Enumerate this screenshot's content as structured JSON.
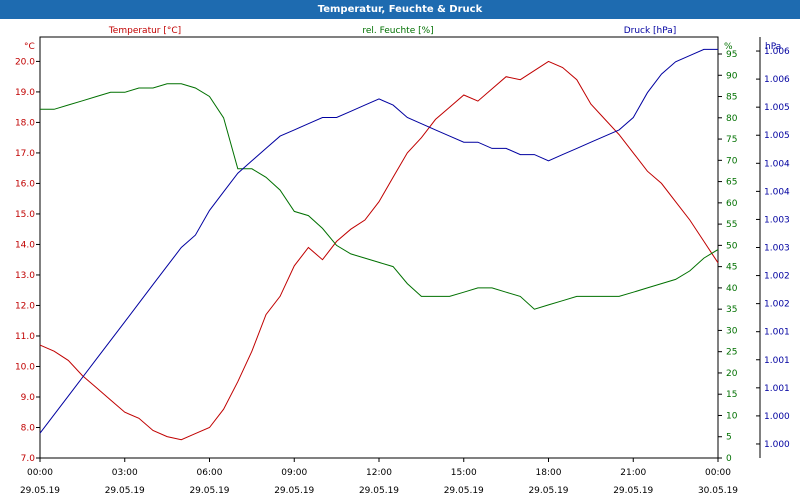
{
  "window": {
    "title": "Temperatur, Feuchte & Druck"
  },
  "colors": {
    "title_bar": "#1e6bb0",
    "temperature": "#c00000",
    "humidity": "#007000",
    "pressure": "#0000a0",
    "grid": "#000000",
    "axis": "#000000"
  },
  "chart_data": {
    "type": "line",
    "grid": true,
    "axes": {
      "left": {
        "label": "Temperatur [°C]",
        "unit": "°C",
        "range": [
          7.0,
          20.8
        ],
        "ticks": [
          "7.0",
          "8.0",
          "9.0",
          "10.0",
          "11.0",
          "12.0",
          "13.0",
          "14.0",
          "15.0",
          "16.0",
          "17.0",
          "18.0",
          "19.0",
          "20.0"
        ]
      },
      "right1": {
        "label": "rel. Feuchte [%]",
        "unit": "%",
        "range": [
          0,
          99
        ],
        "ticks": [
          "0",
          "5",
          "10",
          "15",
          "20",
          "25",
          "30",
          "35",
          "40",
          "45",
          "50",
          "55",
          "60",
          "65",
          "70",
          "75",
          "80",
          "85",
          "90",
          "95"
        ]
      },
      "right2": {
        "label": "Druck [hPa]",
        "unit": "hPa",
        "range": [
          1.0,
          1.0068
        ],
        "ticks": [
          "1.000",
          "1.000",
          "1.001",
          "1.001",
          "1.001",
          "1.002",
          "1.002",
          "1.003",
          "1.003",
          "1.004",
          "1.004",
          "1.005",
          "1.005",
          "1.006",
          "1.006"
        ]
      },
      "x": {
        "range": [
          0,
          24
        ],
        "ticks": [
          {
            "time": "00:00",
            "date": "29.05.19"
          },
          {
            "time": "03:00",
            "date": "29.05.19"
          },
          {
            "time": "06:00",
            "date": "29.05.19"
          },
          {
            "time": "09:00",
            "date": "29.05.19"
          },
          {
            "time": "12:00",
            "date": "29.05.19"
          },
          {
            "time": "15:00",
            "date": "29.05.19"
          },
          {
            "time": "18:00",
            "date": "29.05.19"
          },
          {
            "time": "21:00",
            "date": "29.05.19"
          },
          {
            "time": "00:00",
            "date": "30.05.19"
          }
        ]
      }
    },
    "series": [
      {
        "name": "Temperatur [°C]",
        "axis": "left",
        "x": [
          0,
          0.5,
          1,
          1.5,
          2,
          2.5,
          3,
          3.5,
          4,
          4.5,
          5,
          5.5,
          6,
          6.5,
          7,
          7.5,
          8,
          8.5,
          9,
          9.5,
          10,
          10.5,
          11,
          11.5,
          12,
          12.5,
          13,
          13.5,
          14,
          14.5,
          15,
          15.5,
          16,
          16.5,
          17,
          17.5,
          18,
          18.5,
          19,
          19.5,
          20,
          20.5,
          21,
          21.5,
          22,
          22.5,
          23,
          23.5,
          24
        ],
        "values": [
          10.7,
          10.5,
          10.2,
          9.7,
          9.3,
          8.9,
          8.5,
          8.3,
          7.9,
          7.7,
          7.6,
          7.8,
          8.0,
          8.6,
          9.5,
          10.5,
          11.7,
          12.3,
          13.3,
          13.9,
          13.5,
          14.1,
          14.5,
          14.8,
          15.4,
          16.2,
          17.0,
          17.5,
          18.1,
          18.5,
          18.9,
          18.7,
          19.1,
          19.5,
          19.4,
          19.7,
          20.0,
          19.8,
          19.4,
          18.6,
          18.1,
          17.6,
          17.0,
          16.4,
          16.0,
          15.4,
          14.8,
          14.1,
          13.4
        ]
      },
      {
        "name": "rel. Feuchte [%]",
        "axis": "right1",
        "x": [
          0,
          0.5,
          1,
          1.5,
          2,
          2.5,
          3,
          3.5,
          4,
          4.5,
          5,
          5.5,
          6,
          6.5,
          7,
          7.5,
          8,
          8.5,
          9,
          9.5,
          10,
          10.5,
          11,
          11.5,
          12,
          12.5,
          13,
          13.5,
          14,
          14.5,
          15,
          15.5,
          16,
          16.5,
          17,
          17.5,
          18,
          18.5,
          19,
          19.5,
          20,
          20.5,
          21,
          21.5,
          22,
          22.5,
          23,
          23.5,
          24
        ],
        "values": [
          82,
          82,
          83,
          84,
          85,
          86,
          86,
          87,
          87,
          88,
          88,
          87,
          85,
          80,
          68,
          68,
          66,
          63,
          58,
          57,
          54,
          50,
          48,
          47,
          46,
          45,
          41,
          38,
          38,
          38,
          39,
          40,
          40,
          39,
          38,
          35,
          36,
          37,
          38,
          38,
          38,
          38,
          39,
          40,
          41,
          42,
          44,
          47,
          49
        ]
      },
      {
        "name": "Druck [hPa]",
        "axis": "right2",
        "x": [
          0,
          0.5,
          1,
          1.5,
          2,
          2.5,
          3,
          3.5,
          4,
          4.5,
          5,
          5.5,
          6,
          6.5,
          7,
          7.5,
          8,
          8.5,
          9,
          9.5,
          10,
          10.5,
          11,
          11.5,
          12,
          12.5,
          13,
          13.5,
          14,
          14.5,
          15,
          15.5,
          16,
          16.5,
          17,
          17.5,
          18,
          18.5,
          19,
          19.5,
          20,
          20.5,
          21,
          21.5,
          22,
          22.5,
          23,
          23.5,
          24
        ],
        "values": [
          1.0004,
          1.0007,
          1.001,
          1.0013,
          1.0016,
          1.0019,
          1.0022,
          1.0025,
          1.0028,
          1.0031,
          1.0034,
          1.0036,
          1.004,
          1.0043,
          1.0046,
          1.0048,
          1.005,
          1.0052,
          1.0053,
          1.0054,
          1.0055,
          1.0055,
          1.0056,
          1.0057,
          1.0058,
          1.0057,
          1.0055,
          1.0054,
          1.0053,
          1.0052,
          1.0051,
          1.0051,
          1.005,
          1.005,
          1.0049,
          1.0049,
          1.0048,
          1.0049,
          1.005,
          1.0051,
          1.0052,
          1.0053,
          1.0055,
          1.0059,
          1.0062,
          1.0064,
          1.0065,
          1.0066,
          1.0066
        ]
      }
    ]
  }
}
